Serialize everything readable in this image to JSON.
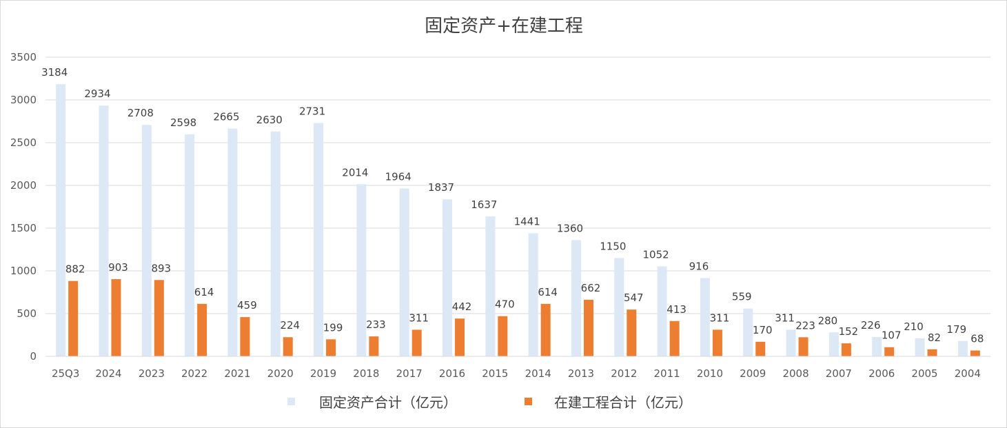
{
  "chart_data": {
    "type": "bar",
    "title": "固定资产+在建工程",
    "xlabel": "",
    "ylabel": "",
    "ylim": [
      0,
      3500
    ],
    "yticks": [
      0,
      500,
      1000,
      1500,
      2000,
      2500,
      3000,
      3500
    ],
    "grid": true,
    "legend_position": "bottom",
    "categories": [
      "25Q3",
      "2024",
      "2023",
      "2022",
      "2021",
      "2020",
      "2019",
      "2018",
      "2017",
      "2016",
      "2015",
      "2014",
      "2013",
      "2012",
      "2011",
      "2010",
      "2009",
      "2008",
      "2007",
      "2006",
      "2005",
      "2004"
    ],
    "series": [
      {
        "name": "固定资产合计（亿元）",
        "color": "#dce8f5",
        "values": [
          3184,
          2934,
          2708,
          2598,
          2665,
          2630,
          2731,
          2014,
          1964,
          1837,
          1637,
          1441,
          1360,
          1150,
          1052,
          916,
          559,
          311,
          280,
          226,
          210,
          179
        ]
      },
      {
        "name": "在建工程合计（亿元）",
        "color": "#ed7d31",
        "values": [
          882,
          903,
          893,
          614,
          459,
          224,
          199,
          233,
          311,
          442,
          470,
          614,
          662,
          547,
          413,
          311,
          170,
          223,
          152,
          107,
          82,
          68
        ]
      }
    ]
  }
}
